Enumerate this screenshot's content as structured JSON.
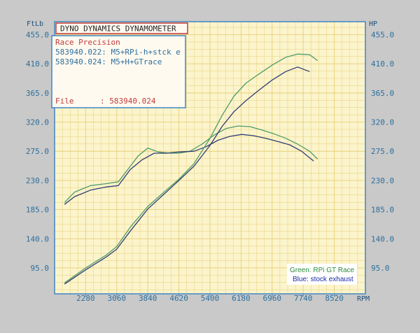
{
  "header": {
    "title": "DYNO DYNAMICS DYNAMOMETER"
  },
  "infobox": {
    "heading": "Race Precision",
    "runs": [
      "583940.022: M5+RPi-h+stck e",
      "583940.024: M5+H+GTrace"
    ],
    "file_label": "File",
    "file_value": ": 583940.024"
  },
  "legend": {
    "green": "Green: RPi GT Race",
    "blue": "Blue: stock exhaust"
  },
  "colors": {
    "background": "#fbf4cc",
    "grid": "#e8cf78",
    "frame": "#3f86c4",
    "green": "#4e9c68",
    "blue": "#303e74",
    "title_red": "#c23a3a"
  },
  "chart_data": {
    "type": "line",
    "title": "DYNO DYNAMICS DYNAMOMETER",
    "left_unit": "FtLb",
    "right_unit": "HP",
    "x_unit": "RPM",
    "xlim": [
      1500,
      9300
    ],
    "ylim": [
      55,
      475
    ],
    "x_ticks": [
      "2280",
      "3060",
      "3840",
      "4620",
      "5400",
      "6180",
      "6960",
      "7740",
      "8520"
    ],
    "y_ticks": [
      "95.0",
      "140.0",
      "185.0",
      "230.0",
      "275.0",
      "320.0",
      "365.0",
      "410.0",
      "455.0"
    ],
    "grid": true,
    "legend_position": "bottom-right",
    "series": [
      {
        "name": "Green: RPi GT Race",
        "measure": "torque",
        "x": [
          1750,
          2000,
          2400,
          2800,
          3100,
          3400,
          3600,
          3840,
          4100,
          4400,
          4620,
          4900,
          5200,
          5500,
          5800,
          6100,
          6400,
          6700,
          7000,
          7300,
          7600,
          7900,
          8100
        ],
        "y": [
          196,
          212,
          222,
          225,
          228,
          252,
          268,
          280,
          274,
          272,
          272,
          275,
          286,
          300,
          310,
          314,
          313,
          308,
          302,
          295,
          286,
          275,
          263
        ]
      },
      {
        "name": "Blue: stock exhaust",
        "measure": "torque",
        "x": [
          1750,
          2000,
          2400,
          2800,
          3100,
          3400,
          3700,
          4000,
          4300,
          4620,
          5000,
          5300,
          5600,
          5900,
          6200,
          6500,
          6800,
          7100,
          7400,
          7700,
          8000
        ],
        "y": [
          193,
          205,
          215,
          220,
          222,
          247,
          262,
          272,
          272,
          274,
          275,
          282,
          292,
          298,
          301,
          299,
          295,
          290,
          285,
          275,
          260
        ]
      },
      {
        "name": "Green: RPi GT Race",
        "measure": "power",
        "x": [
          1750,
          2280,
          2800,
          3060,
          3400,
          3840,
          4300,
          4620,
          5000,
          5400,
          5700,
          6000,
          6300,
          6600,
          6960,
          7300,
          7600,
          7900,
          8100
        ],
        "y": [
          72,
          95,
          115,
          128,
          158,
          190,
          215,
          232,
          256,
          295,
          330,
          360,
          380,
          393,
          408,
          420,
          425,
          424,
          415
        ]
      },
      {
        "name": "Blue: stock exhaust",
        "measure": "power",
        "x": [
          1750,
          2280,
          2800,
          3060,
          3400,
          3840,
          4300,
          4620,
          5000,
          5400,
          5700,
          6000,
          6300,
          6600,
          6960,
          7300,
          7600,
          7900
        ],
        "y": [
          70,
          92,
          112,
          124,
          152,
          186,
          212,
          230,
          252,
          284,
          313,
          336,
          353,
          368,
          385,
          398,
          405,
          398
        ]
      }
    ]
  }
}
